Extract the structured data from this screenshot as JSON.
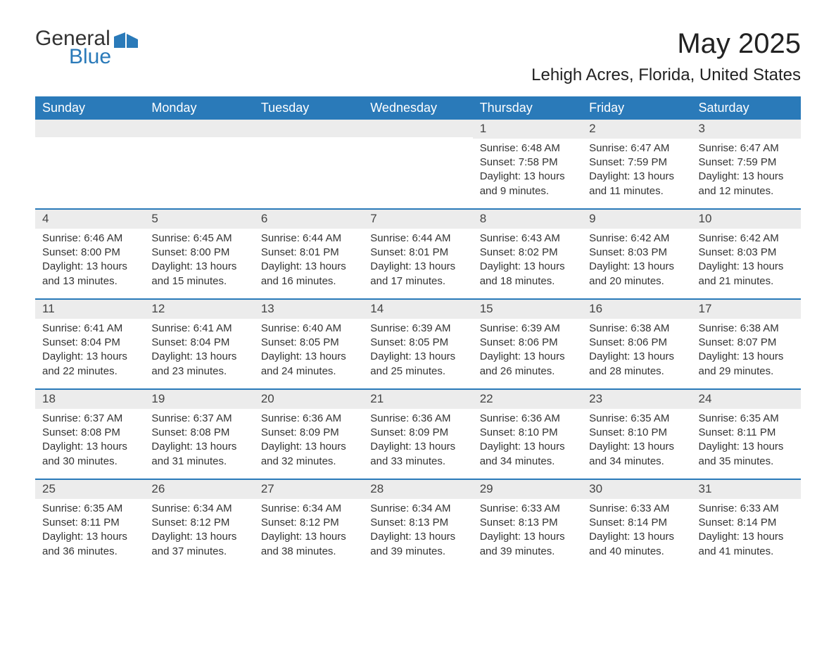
{
  "logo": {
    "general": "General",
    "blue": "Blue"
  },
  "title": "May 2025",
  "location": "Lehigh Acres, Florida, United States",
  "colors": {
    "header_bg": "#2a7ab9",
    "header_text": "#ffffff",
    "daynum_bg": "#ececec",
    "border": "#2a7ab9",
    "text": "#333333"
  },
  "weekdays": [
    "Sunday",
    "Monday",
    "Tuesday",
    "Wednesday",
    "Thursday",
    "Friday",
    "Saturday"
  ],
  "weeks": [
    [
      {
        "empty": true
      },
      {
        "empty": true
      },
      {
        "empty": true
      },
      {
        "empty": true
      },
      {
        "day": "1",
        "sunrise": "Sunrise: 6:48 AM",
        "sunset": "Sunset: 7:58 PM",
        "daylight": "Daylight: 13 hours and 9 minutes."
      },
      {
        "day": "2",
        "sunrise": "Sunrise: 6:47 AM",
        "sunset": "Sunset: 7:59 PM",
        "daylight": "Daylight: 13 hours and 11 minutes."
      },
      {
        "day": "3",
        "sunrise": "Sunrise: 6:47 AM",
        "sunset": "Sunset: 7:59 PM",
        "daylight": "Daylight: 13 hours and 12 minutes."
      }
    ],
    [
      {
        "day": "4",
        "sunrise": "Sunrise: 6:46 AM",
        "sunset": "Sunset: 8:00 PM",
        "daylight": "Daylight: 13 hours and 13 minutes."
      },
      {
        "day": "5",
        "sunrise": "Sunrise: 6:45 AM",
        "sunset": "Sunset: 8:00 PM",
        "daylight": "Daylight: 13 hours and 15 minutes."
      },
      {
        "day": "6",
        "sunrise": "Sunrise: 6:44 AM",
        "sunset": "Sunset: 8:01 PM",
        "daylight": "Daylight: 13 hours and 16 minutes."
      },
      {
        "day": "7",
        "sunrise": "Sunrise: 6:44 AM",
        "sunset": "Sunset: 8:01 PM",
        "daylight": "Daylight: 13 hours and 17 minutes."
      },
      {
        "day": "8",
        "sunrise": "Sunrise: 6:43 AM",
        "sunset": "Sunset: 8:02 PM",
        "daylight": "Daylight: 13 hours and 18 minutes."
      },
      {
        "day": "9",
        "sunrise": "Sunrise: 6:42 AM",
        "sunset": "Sunset: 8:03 PM",
        "daylight": "Daylight: 13 hours and 20 minutes."
      },
      {
        "day": "10",
        "sunrise": "Sunrise: 6:42 AM",
        "sunset": "Sunset: 8:03 PM",
        "daylight": "Daylight: 13 hours and 21 minutes."
      }
    ],
    [
      {
        "day": "11",
        "sunrise": "Sunrise: 6:41 AM",
        "sunset": "Sunset: 8:04 PM",
        "daylight": "Daylight: 13 hours and 22 minutes."
      },
      {
        "day": "12",
        "sunrise": "Sunrise: 6:41 AM",
        "sunset": "Sunset: 8:04 PM",
        "daylight": "Daylight: 13 hours and 23 minutes."
      },
      {
        "day": "13",
        "sunrise": "Sunrise: 6:40 AM",
        "sunset": "Sunset: 8:05 PM",
        "daylight": "Daylight: 13 hours and 24 minutes."
      },
      {
        "day": "14",
        "sunrise": "Sunrise: 6:39 AM",
        "sunset": "Sunset: 8:05 PM",
        "daylight": "Daylight: 13 hours and 25 minutes."
      },
      {
        "day": "15",
        "sunrise": "Sunrise: 6:39 AM",
        "sunset": "Sunset: 8:06 PM",
        "daylight": "Daylight: 13 hours and 26 minutes."
      },
      {
        "day": "16",
        "sunrise": "Sunrise: 6:38 AM",
        "sunset": "Sunset: 8:06 PM",
        "daylight": "Daylight: 13 hours and 28 minutes."
      },
      {
        "day": "17",
        "sunrise": "Sunrise: 6:38 AM",
        "sunset": "Sunset: 8:07 PM",
        "daylight": "Daylight: 13 hours and 29 minutes."
      }
    ],
    [
      {
        "day": "18",
        "sunrise": "Sunrise: 6:37 AM",
        "sunset": "Sunset: 8:08 PM",
        "daylight": "Daylight: 13 hours and 30 minutes."
      },
      {
        "day": "19",
        "sunrise": "Sunrise: 6:37 AM",
        "sunset": "Sunset: 8:08 PM",
        "daylight": "Daylight: 13 hours and 31 minutes."
      },
      {
        "day": "20",
        "sunrise": "Sunrise: 6:36 AM",
        "sunset": "Sunset: 8:09 PM",
        "daylight": "Daylight: 13 hours and 32 minutes."
      },
      {
        "day": "21",
        "sunrise": "Sunrise: 6:36 AM",
        "sunset": "Sunset: 8:09 PM",
        "daylight": "Daylight: 13 hours and 33 minutes."
      },
      {
        "day": "22",
        "sunrise": "Sunrise: 6:36 AM",
        "sunset": "Sunset: 8:10 PM",
        "daylight": "Daylight: 13 hours and 34 minutes."
      },
      {
        "day": "23",
        "sunrise": "Sunrise: 6:35 AM",
        "sunset": "Sunset: 8:10 PM",
        "daylight": "Daylight: 13 hours and 34 minutes."
      },
      {
        "day": "24",
        "sunrise": "Sunrise: 6:35 AM",
        "sunset": "Sunset: 8:11 PM",
        "daylight": "Daylight: 13 hours and 35 minutes."
      }
    ],
    [
      {
        "day": "25",
        "sunrise": "Sunrise: 6:35 AM",
        "sunset": "Sunset: 8:11 PM",
        "daylight": "Daylight: 13 hours and 36 minutes."
      },
      {
        "day": "26",
        "sunrise": "Sunrise: 6:34 AM",
        "sunset": "Sunset: 8:12 PM",
        "daylight": "Daylight: 13 hours and 37 minutes."
      },
      {
        "day": "27",
        "sunrise": "Sunrise: 6:34 AM",
        "sunset": "Sunset: 8:12 PM",
        "daylight": "Daylight: 13 hours and 38 minutes."
      },
      {
        "day": "28",
        "sunrise": "Sunrise: 6:34 AM",
        "sunset": "Sunset: 8:13 PM",
        "daylight": "Daylight: 13 hours and 39 minutes."
      },
      {
        "day": "29",
        "sunrise": "Sunrise: 6:33 AM",
        "sunset": "Sunset: 8:13 PM",
        "daylight": "Daylight: 13 hours and 39 minutes."
      },
      {
        "day": "30",
        "sunrise": "Sunrise: 6:33 AM",
        "sunset": "Sunset: 8:14 PM",
        "daylight": "Daylight: 13 hours and 40 minutes."
      },
      {
        "day": "31",
        "sunrise": "Sunrise: 6:33 AM",
        "sunset": "Sunset: 8:14 PM",
        "daylight": "Daylight: 13 hours and 41 minutes."
      }
    ]
  ]
}
